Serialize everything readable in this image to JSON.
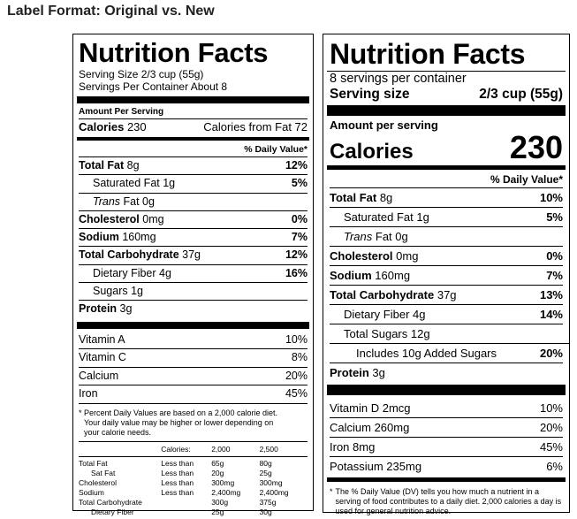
{
  "page_title": "Label Format: Original vs. New",
  "old": {
    "title": "Nutrition Facts",
    "serving_size": "Serving Size 2/3 cup (55g)",
    "servings_per_container": "Servings Per Container About 8",
    "amount_per_serving": "Amount Per Serving",
    "calories_label": "Calories",
    "calories_value": "230",
    "calories_fat": "Calories from Fat 72",
    "dv_header": "% Daily Value*",
    "nutrients": [
      {
        "label": "Total Fat",
        "amount": "8g",
        "dv": "12%"
      },
      {
        "label": "Saturated Fat",
        "amount": "1g",
        "dv": "5%"
      },
      {
        "label": "Trans",
        "amount": "Fat 0g",
        "dv": ""
      },
      {
        "label": "Cholesterol",
        "amount": "0mg",
        "dv": "0%"
      },
      {
        "label": "Sodium",
        "amount": "160mg",
        "dv": "7%"
      },
      {
        "label": "Total Carbohydrate",
        "amount": "37g",
        "dv": "12%"
      },
      {
        "label": "Dietary Fiber",
        "amount": "4g",
        "dv": "16%"
      },
      {
        "label": "Sugars",
        "amount": "1g",
        "dv": ""
      },
      {
        "label": "Protein",
        "amount": "3g",
        "dv": ""
      }
    ],
    "vitamins": [
      {
        "label": "Vitamin A",
        "dv": "10%"
      },
      {
        "label": "Vitamin C",
        "dv": "8%"
      },
      {
        "label": "Calcium",
        "dv": "20%"
      },
      {
        "label": "Iron",
        "dv": "45%"
      }
    ],
    "footnote": [
      "* Percent Daily Values are based on a 2,000 calorie diet.",
      "Your daily value may be higher or lower depending on",
      "your calorie needs."
    ],
    "table_header": [
      "",
      "Calories:",
      "2,000",
      "2,500"
    ],
    "table_rows": [
      [
        "Total Fat",
        "Less than",
        "65g",
        "80g"
      ],
      [
        "Sat Fat",
        "Less than",
        "20g",
        "25g"
      ],
      [
        "Cholesterol",
        "Less than",
        "300mg",
        "300mg"
      ],
      [
        "Sodium",
        "Less than",
        "2,400mg",
        "2,400mg"
      ],
      [
        "Total Carbohydrate",
        "",
        "300g",
        "375g"
      ],
      [
        "Dietary Fiber",
        "",
        "25g",
        "30g"
      ]
    ]
  },
  "new": {
    "title": "Nutrition Facts",
    "servings_per_container": "8 servings per container",
    "serving_size_label": "Serving size",
    "serving_size_value": "2/3 cup (55g)",
    "amount_per_serving": "Amount per serving",
    "calories_label": "Calories",
    "calories_value": "230",
    "dv_header": "% Daily Value*",
    "nutrients": [
      {
        "label": "Total Fat",
        "amount": "8g",
        "dv": "10%"
      },
      {
        "label": "Saturated Fat",
        "amount": "1g",
        "dv": "5%"
      },
      {
        "label": "Trans",
        "amount": "Fat 0g",
        "dv": ""
      },
      {
        "label": "Cholesterol",
        "amount": "0mg",
        "dv": "0%"
      },
      {
        "label": "Sodium",
        "amount": "160mg",
        "dv": "7%"
      },
      {
        "label": "Total Carbohydrate",
        "amount": "37g",
        "dv": "13%"
      },
      {
        "label": "Dietary Fiber",
        "amount": "4g",
        "dv": "14%"
      },
      {
        "label": "Total Sugars",
        "amount": "12g",
        "dv": ""
      },
      {
        "label": "Includes 10g Added Sugars",
        "amount": "",
        "dv": "20%"
      },
      {
        "label": "Protein",
        "amount": "3g",
        "dv": ""
      }
    ],
    "vitamins": [
      {
        "label": "Vitamin D 2mcg",
        "dv": "10%"
      },
      {
        "label": "Calcium 260mg",
        "dv": "20%"
      },
      {
        "label": "Iron 8mg",
        "dv": "45%"
      },
      {
        "label": "Potassium 235mg",
        "dv": "6%"
      }
    ],
    "footnote_star": "*",
    "footnote": "The % Daily Value (DV) tells you how much a nutrient in a serving of food contributes to a daily diet. 2,000 calories a day is used for general nutrition advice."
  }
}
